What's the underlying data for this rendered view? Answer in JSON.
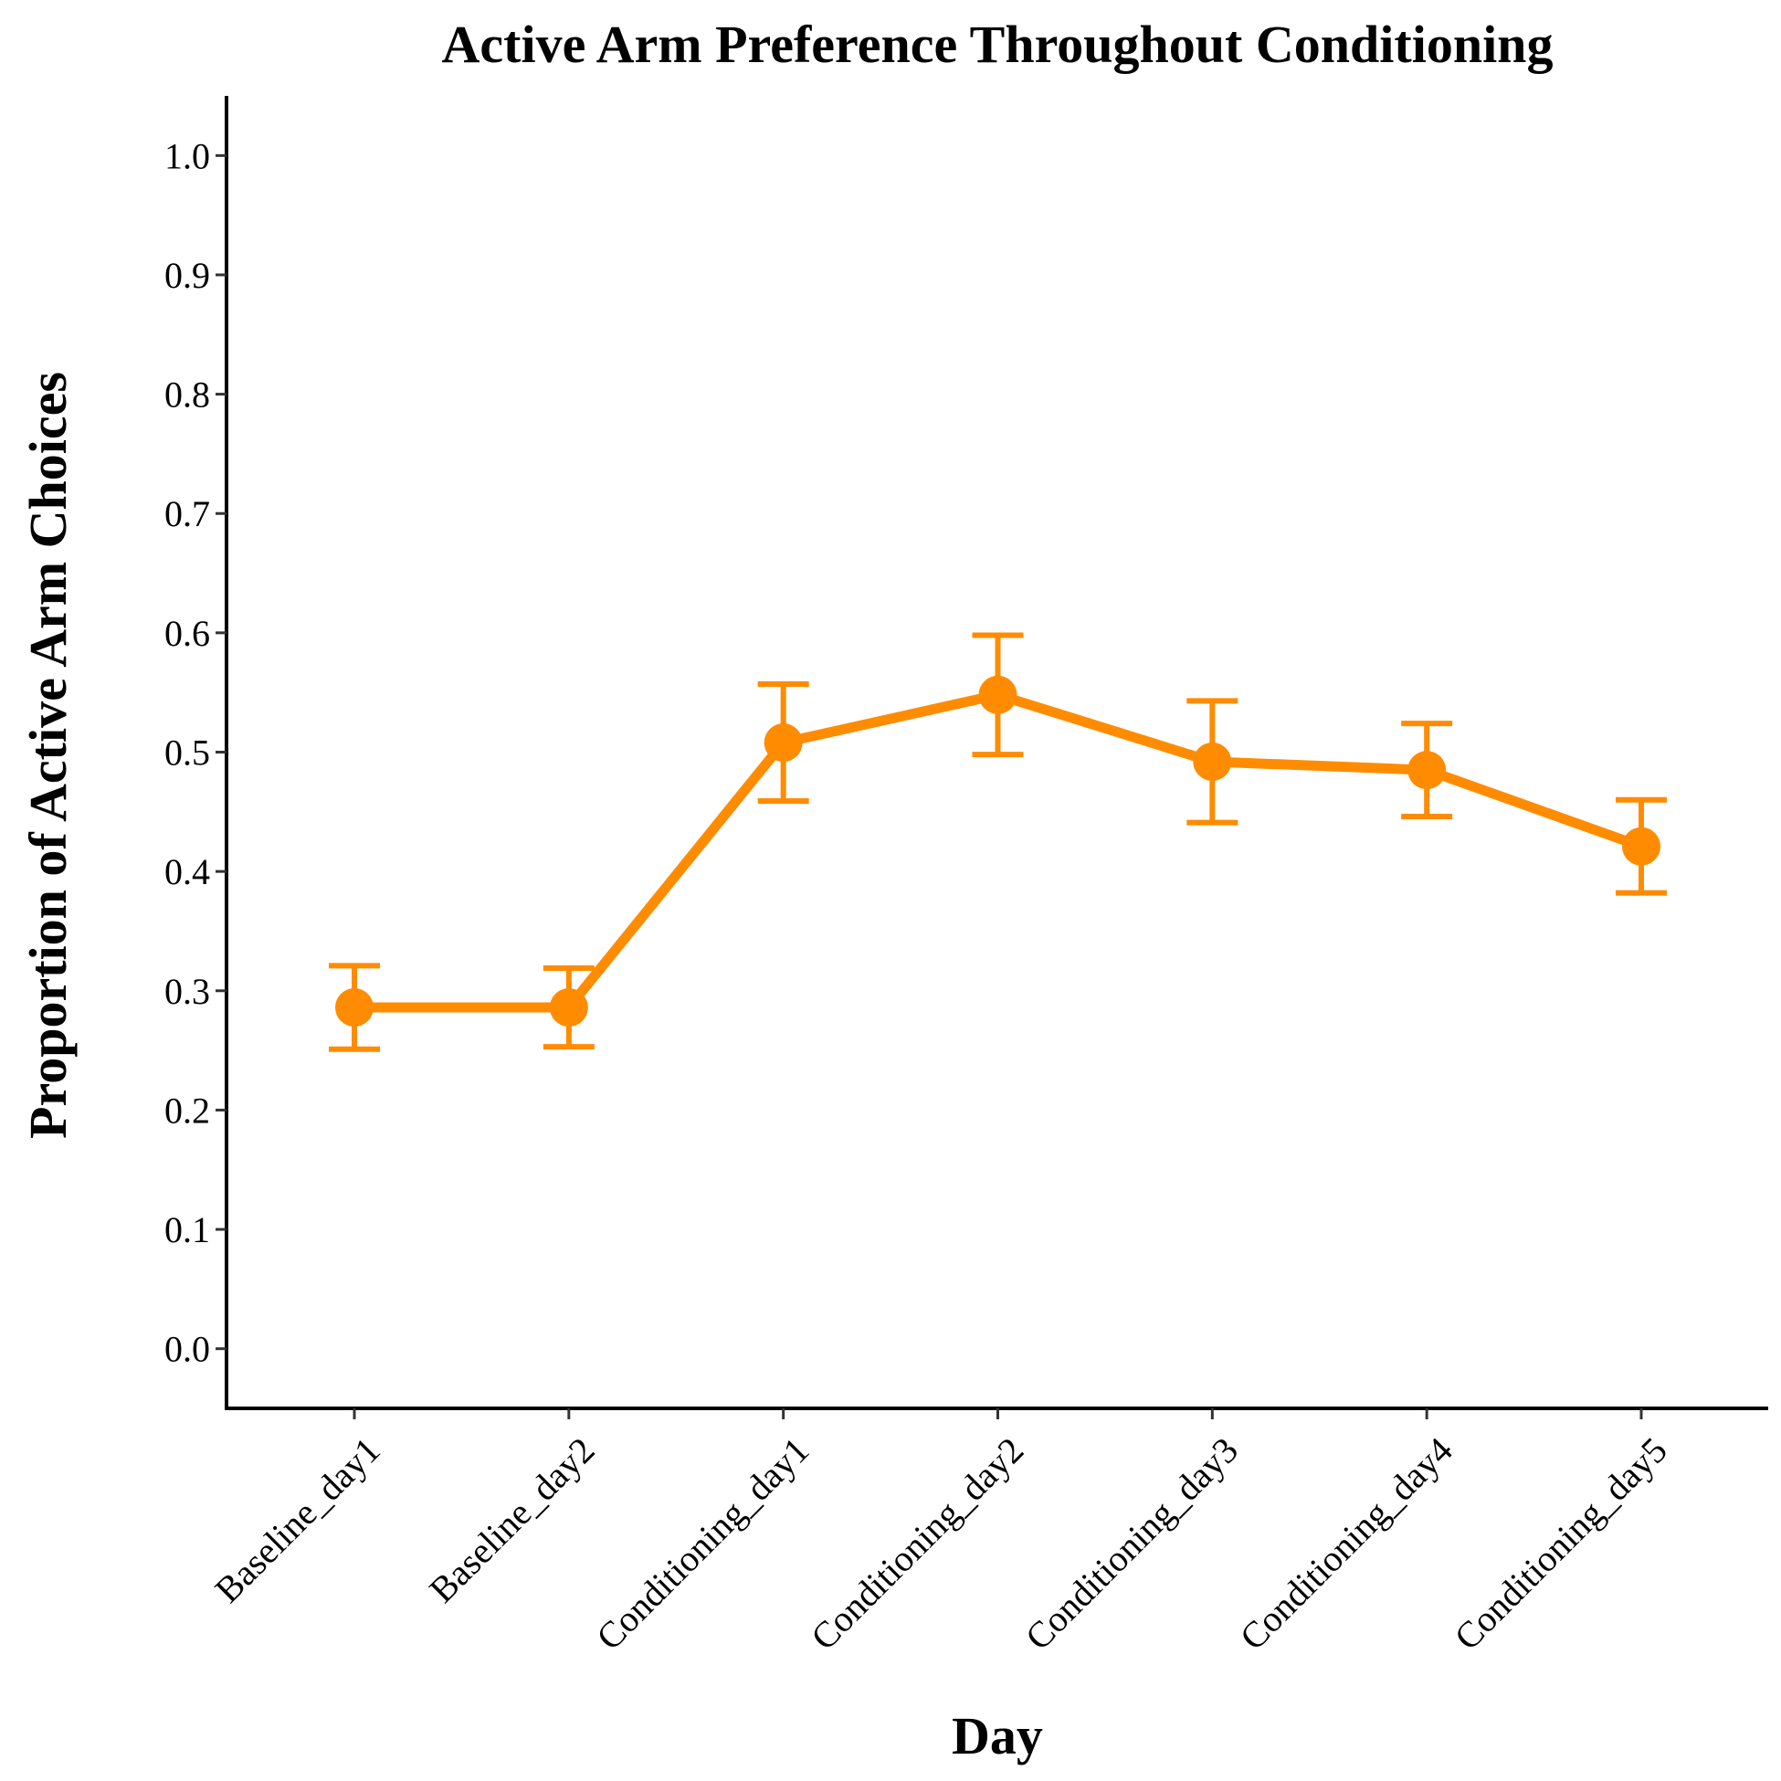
{
  "chart_data": {
    "type": "line",
    "title": "Active Arm Preference Throughout Conditioning",
    "xlabel": "Day",
    "ylabel": "Proportion of Active Arm Choices",
    "categories": [
      "Baseline_day1",
      "Baseline_day2",
      "Conditioning_day1",
      "Conditioning_day2",
      "Conditioning_day3",
      "Conditioning_day4",
      "Conditioning_day5"
    ],
    "series": [
      {
        "values": [
          0.286,
          0.286,
          0.508,
          0.548,
          0.492,
          0.485,
          0.421
        ],
        "error_lower": [
          0.251,
          0.253,
          0.459,
          0.498,
          0.441,
          0.446,
          0.382
        ],
        "error_upper": [
          0.321,
          0.319,
          0.557,
          0.598,
          0.543,
          0.524,
          0.46
        ],
        "color": "#FF8C00"
      }
    ],
    "ylim": [
      -0.05,
      1.05
    ],
    "yticks": [
      "0.0",
      "0.1",
      "0.2",
      "0.3",
      "0.4",
      "0.5",
      "0.6",
      "0.7",
      "0.8",
      "0.9",
      "1.0"
    ],
    "grid": false,
    "legend": "none"
  }
}
